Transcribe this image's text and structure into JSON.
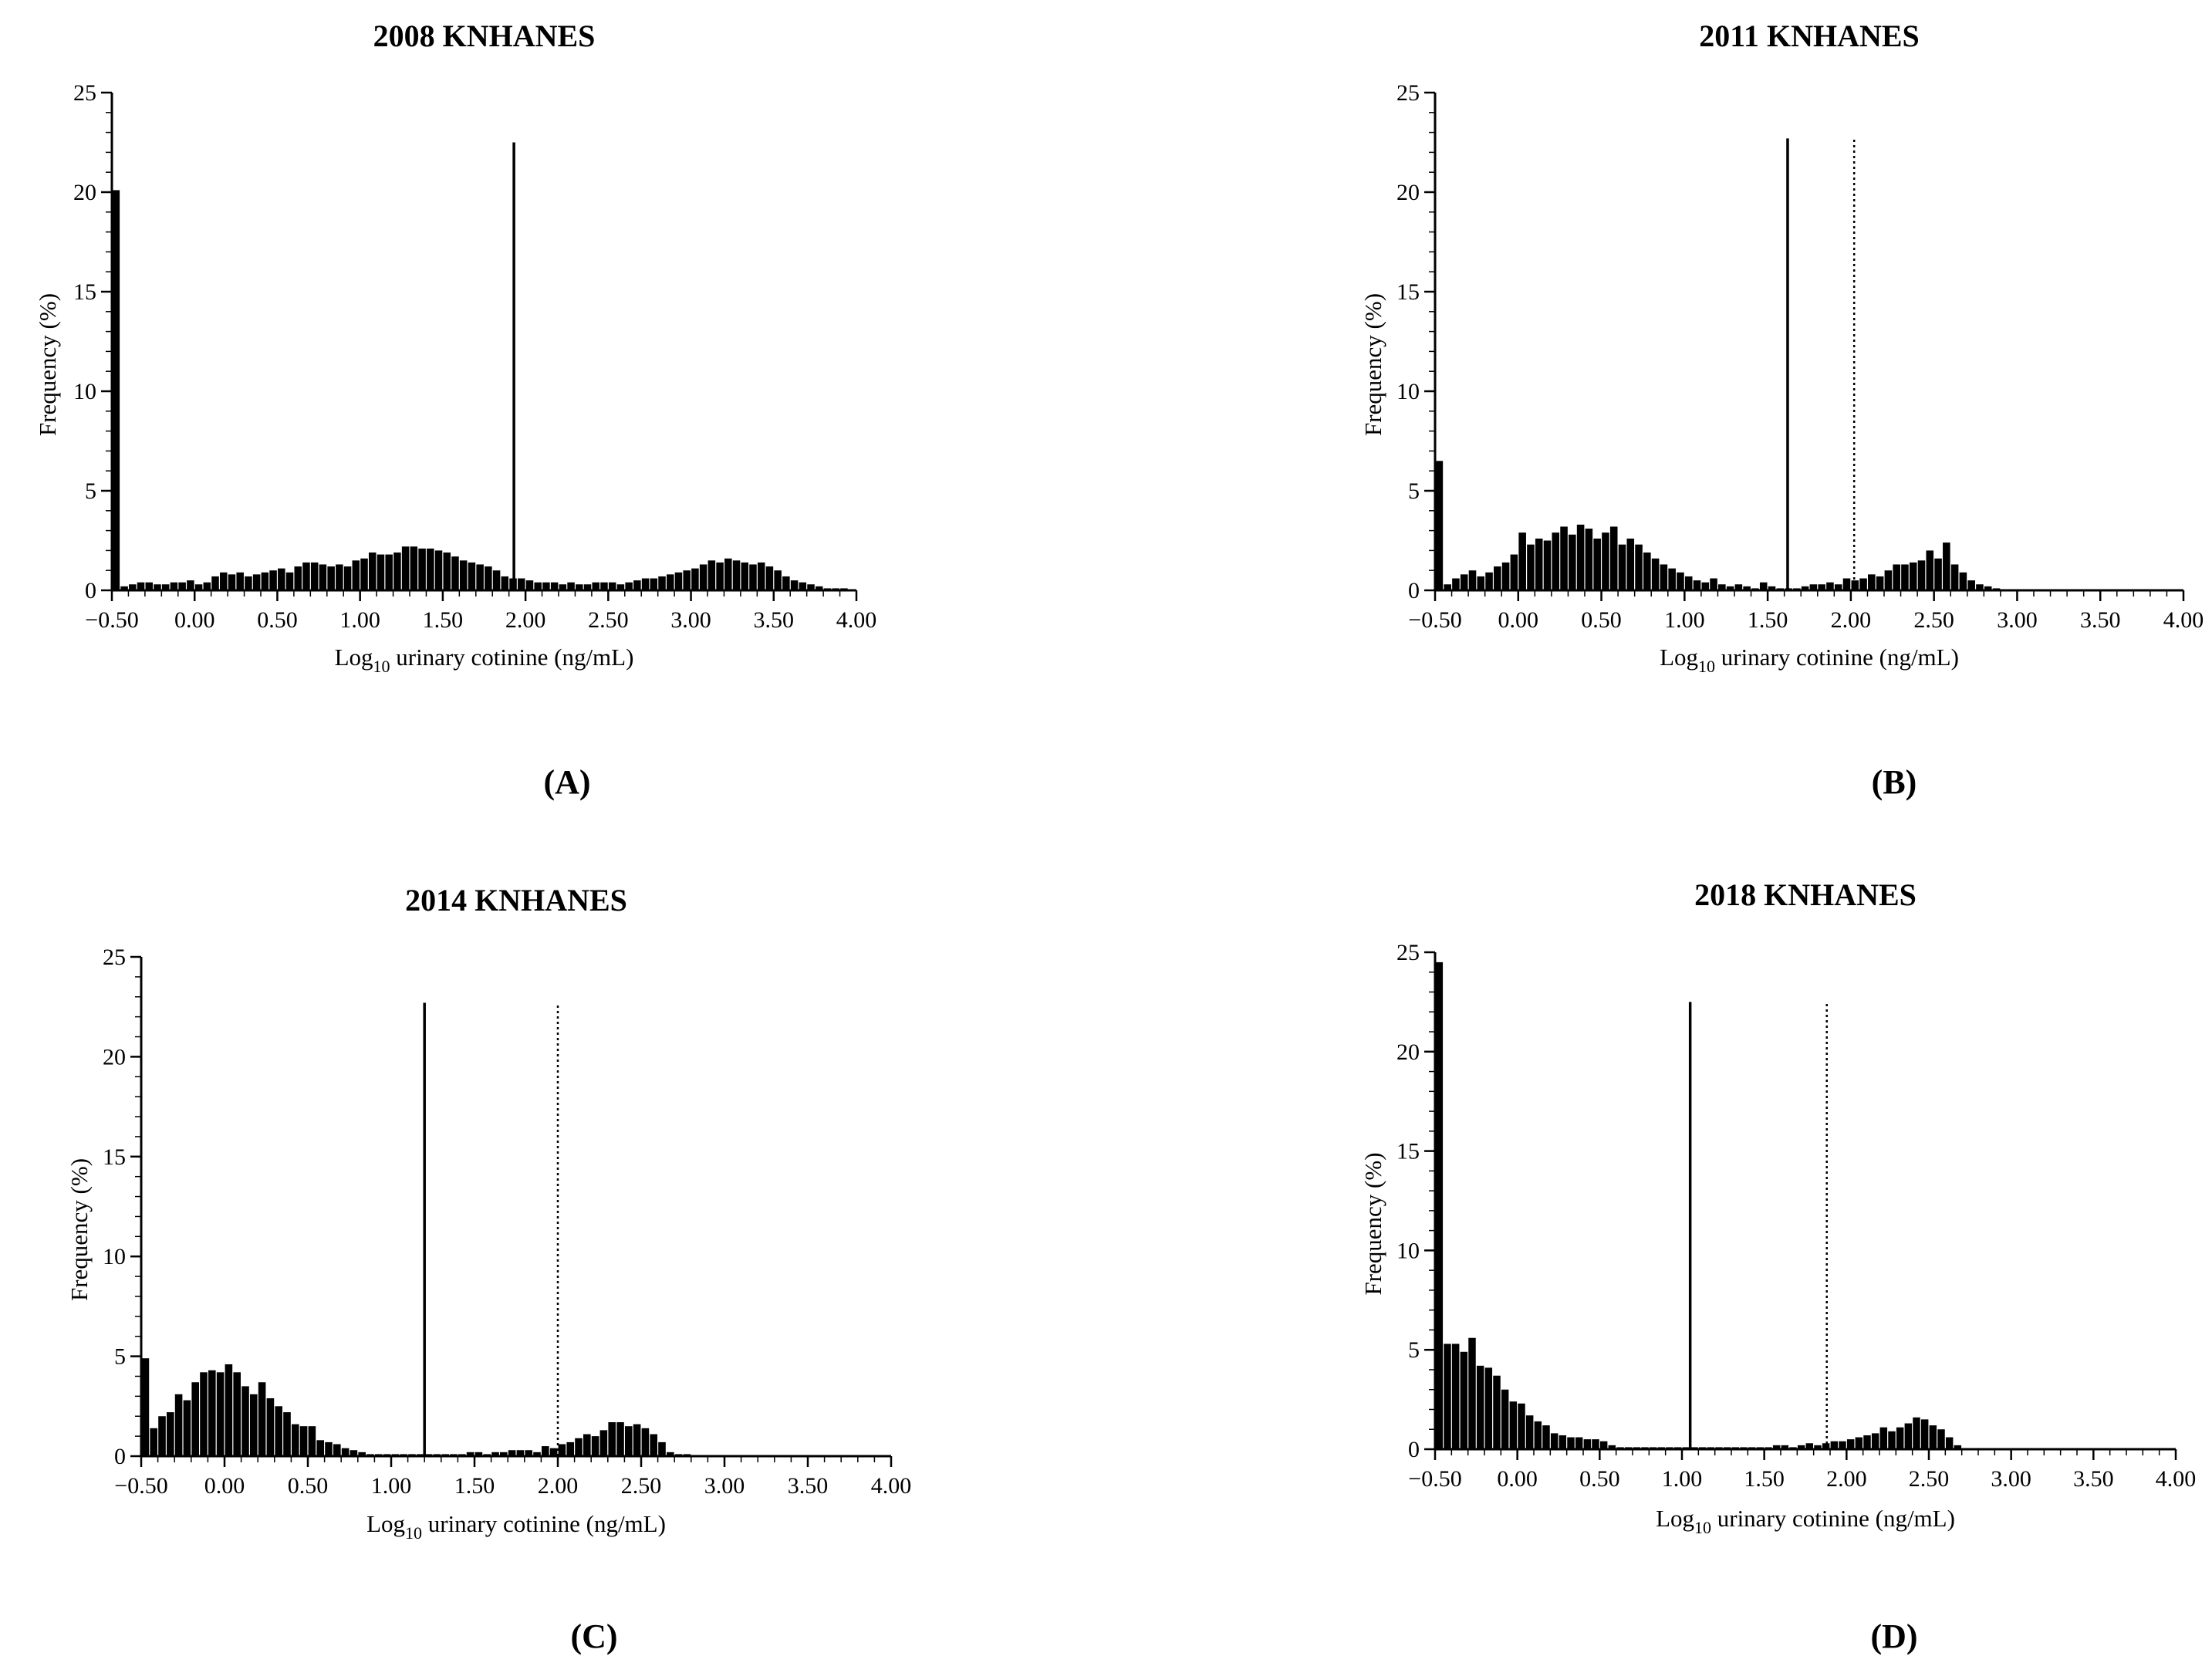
{
  "figure": {
    "panels": [
      "(A)",
      "(B)",
      "(C)",
      "(D)"
    ]
  },
  "chart_data": [
    {
      "type": "bar",
      "panel_label": "(A)",
      "title": "2008 KNHANES",
      "xlabel": "Log",
      "xlabel_subscript": "10",
      "xlabel_rest": " urinary cotinine (ng/mL)",
      "ylabel": "Frequency (%)",
      "xlim": [
        -0.5,
        4.0
      ],
      "ylim": [
        0,
        25
      ],
      "xticks": [
        "-0.50",
        "0.00",
        "0.50",
        "1.00",
        "1.50",
        "2.00",
        "2.50",
        "3.00",
        "3.50",
        "4.00"
      ],
      "xtick_values": [
        -0.5,
        0,
        0.5,
        1,
        1.5,
        2,
        2.5,
        3,
        3.5,
        4
      ],
      "yticks": [
        "0",
        "5",
        "10",
        "15",
        "20",
        "25"
      ],
      "ytick_values": [
        0,
        5,
        10,
        15,
        20,
        25
      ],
      "bin_start": -0.5,
      "bin_width": 0.05,
      "values": [
        20.1,
        0.2,
        0.3,
        0.4,
        0.4,
        0.3,
        0.3,
        0.4,
        0.4,
        0.5,
        0.3,
        0.4,
        0.7,
        0.9,
        0.8,
        0.9,
        0.7,
        0.8,
        0.9,
        1.0,
        1.1,
        0.9,
        1.2,
        1.4,
        1.4,
        1.3,
        1.2,
        1.3,
        1.2,
        1.5,
        1.6,
        1.9,
        1.8,
        1.8,
        1.9,
        2.2,
        2.2,
        2.1,
        2.1,
        2.0,
        1.9,
        1.7,
        1.5,
        1.4,
        1.3,
        1.2,
        1.0,
        0.7,
        0.6,
        0.6,
        0.5,
        0.4,
        0.4,
        0.4,
        0.3,
        0.4,
        0.3,
        0.3,
        0.4,
        0.4,
        0.4,
        0.3,
        0.4,
        0.5,
        0.6,
        0.6,
        0.7,
        0.8,
        0.9,
        1.0,
        1.1,
        1.3,
        1.5,
        1.4,
        1.6,
        1.5,
        1.4,
        1.3,
        1.4,
        1.2,
        1.0,
        0.7,
        0.5,
        0.4,
        0.3,
        0.2,
        0.1,
        0.1,
        0.1
      ],
      "reference_lines": [
        {
          "x": 1.93,
          "style": "solid",
          "top": 22.5
        }
      ]
    },
    {
      "type": "bar",
      "panel_label": "(B)",
      "title": "2011 KNHANES",
      "xlabel": "Log",
      "xlabel_subscript": "10",
      "xlabel_rest": " urinary cotinine (ng/mL)",
      "ylabel": "Frequency (%)",
      "xlim": [
        -0.5,
        4.0
      ],
      "ylim": [
        0,
        25
      ],
      "xticks": [
        "-0.50",
        "0.00",
        "0.50",
        "1.00",
        "1.50",
        "2.00",
        "2.50",
        "3.00",
        "3.50",
        "4.00"
      ],
      "xtick_values": [
        -0.5,
        0,
        0.5,
        1,
        1.5,
        2,
        2.5,
        3,
        3.5,
        4
      ],
      "yticks": [
        "0",
        "5",
        "10",
        "15",
        "20",
        "25"
      ],
      "ytick_values": [
        0,
        5,
        10,
        15,
        20,
        25
      ],
      "bin_start": -0.5,
      "bin_width": 0.05,
      "values": [
        6.5,
        0.3,
        0.6,
        0.8,
        1.0,
        0.7,
        0.9,
        1.2,
        1.4,
        1.8,
        2.9,
        2.3,
        2.6,
        2.5,
        2.9,
        3.2,
        2.8,
        3.3,
        3.1,
        2.6,
        2.9,
        3.2,
        2.3,
        2.6,
        2.3,
        1.9,
        1.6,
        1.3,
        1.1,
        0.9,
        0.7,
        0.5,
        0.4,
        0.6,
        0.3,
        0.2,
        0.3,
        0.2,
        0.1,
        0.4,
        0.2,
        0.1,
        0.1,
        0.1,
        0.2,
        0.3,
        0.3,
        0.4,
        0.3,
        0.6,
        0.5,
        0.6,
        0.8,
        0.7,
        1.0,
        1.3,
        1.3,
        1.4,
        1.5,
        2.0,
        1.6,
        2.4,
        1.3,
        0.9,
        0.5,
        0.3,
        0.2,
        0.1
      ],
      "reference_lines": [
        {
          "x": 1.62,
          "style": "solid",
          "top": 22.7
        },
        {
          "x": 2.02,
          "style": "dotted",
          "top": 22.7
        }
      ]
    },
    {
      "type": "bar",
      "panel_label": "(C)",
      "title": "2014 KNHANES",
      "xlabel": "Log",
      "xlabel_subscript": "10",
      "xlabel_rest": " urinary cotinine (ng/mL)",
      "ylabel": "Frequency (%)",
      "xlim": [
        -0.5,
        4.0
      ],
      "ylim": [
        0,
        25
      ],
      "xticks": [
        "-0.50",
        "0.00",
        "0.50",
        "1.00",
        "1.50",
        "2.00",
        "2.50",
        "3.00",
        "3.50",
        "4.00"
      ],
      "xtick_values": [
        -0.5,
        0,
        0.5,
        1,
        1.5,
        2,
        2.5,
        3,
        3.5,
        4
      ],
      "yticks": [
        "0",
        "5",
        "10",
        "15",
        "20",
        "25"
      ],
      "ytick_values": [
        0,
        5,
        10,
        15,
        20,
        25
      ],
      "bin_start": -0.5,
      "bin_width": 0.05,
      "values": [
        4.9,
        1.4,
        2.0,
        2.2,
        3.1,
        2.8,
        3.7,
        4.2,
        4.3,
        4.2,
        4.6,
        4.2,
        3.5,
        3.1,
        3.7,
        2.9,
        2.5,
        2.2,
        1.6,
        1.5,
        1.5,
        0.8,
        0.7,
        0.6,
        0.4,
        0.3,
        0.2,
        0.1,
        0.1,
        0.1,
        0.1,
        0.1,
        0.1,
        0.1,
        0.1,
        0.1,
        0.1,
        0.1,
        0.1,
        0.2,
        0.2,
        0.1,
        0.2,
        0.2,
        0.3,
        0.3,
        0.3,
        0.2,
        0.5,
        0.4,
        0.6,
        0.7,
        0.9,
        1.1,
        1.0,
        1.3,
        1.7,
        1.7,
        1.5,
        1.6,
        1.4,
        1.1,
        0.7,
        0.2,
        0.1,
        0.1
      ],
      "reference_lines": [
        {
          "x": 1.2,
          "style": "solid",
          "top": 22.7
        },
        {
          "x": 2.0,
          "style": "dotted",
          "top": 22.7
        }
      ]
    },
    {
      "type": "bar",
      "panel_label": "(D)",
      "title": "2018 KNHANES",
      "xlabel": "Log",
      "xlabel_subscript": "10",
      "xlabel_rest": " urinary cotinine (ng/mL)",
      "ylabel": "Frequency (%)",
      "xlim": [
        -0.5,
        4.0
      ],
      "ylim": [
        0,
        25
      ],
      "xticks": [
        "-0.50",
        "0.00",
        "0.50",
        "1.00",
        "1.50",
        "2.00",
        "2.50",
        "3.00",
        "3.50",
        "4.00"
      ],
      "xtick_values": [
        -0.5,
        0,
        0.5,
        1,
        1.5,
        2,
        2.5,
        3,
        3.5,
        4
      ],
      "yticks": [
        "0",
        "5",
        "10",
        "15",
        "20",
        "25"
      ],
      "ytick_values": [
        0,
        5,
        10,
        15,
        20,
        25
      ],
      "bin_start": -0.5,
      "bin_width": 0.05,
      "values": [
        24.5,
        5.3,
        5.3,
        4.9,
        5.6,
        4.2,
        4.1,
        3.7,
        3.0,
        2.4,
        2.3,
        1.7,
        1.4,
        1.2,
        0.8,
        0.7,
        0.6,
        0.6,
        0.5,
        0.5,
        0.4,
        0.2,
        0.1,
        0.1,
        0.1,
        0.1,
        0.1,
        0.1,
        0.1,
        0.1,
        0.1,
        0.1,
        0.1,
        0.1,
        0.1,
        0.1,
        0.1,
        0.1,
        0.1,
        0.1,
        0.1,
        0.2,
        0.2,
        0.1,
        0.2,
        0.3,
        0.2,
        0.3,
        0.4,
        0.4,
        0.5,
        0.6,
        0.7,
        0.8,
        1.1,
        0.9,
        1.1,
        1.3,
        1.6,
        1.5,
        1.2,
        1.0,
        0.6,
        0.2
      ],
      "reference_lines": [
        {
          "x": 1.05,
          "style": "solid",
          "top": 22.5
        },
        {
          "x": 1.88,
          "style": "dotted",
          "top": 22.5
        }
      ]
    }
  ]
}
